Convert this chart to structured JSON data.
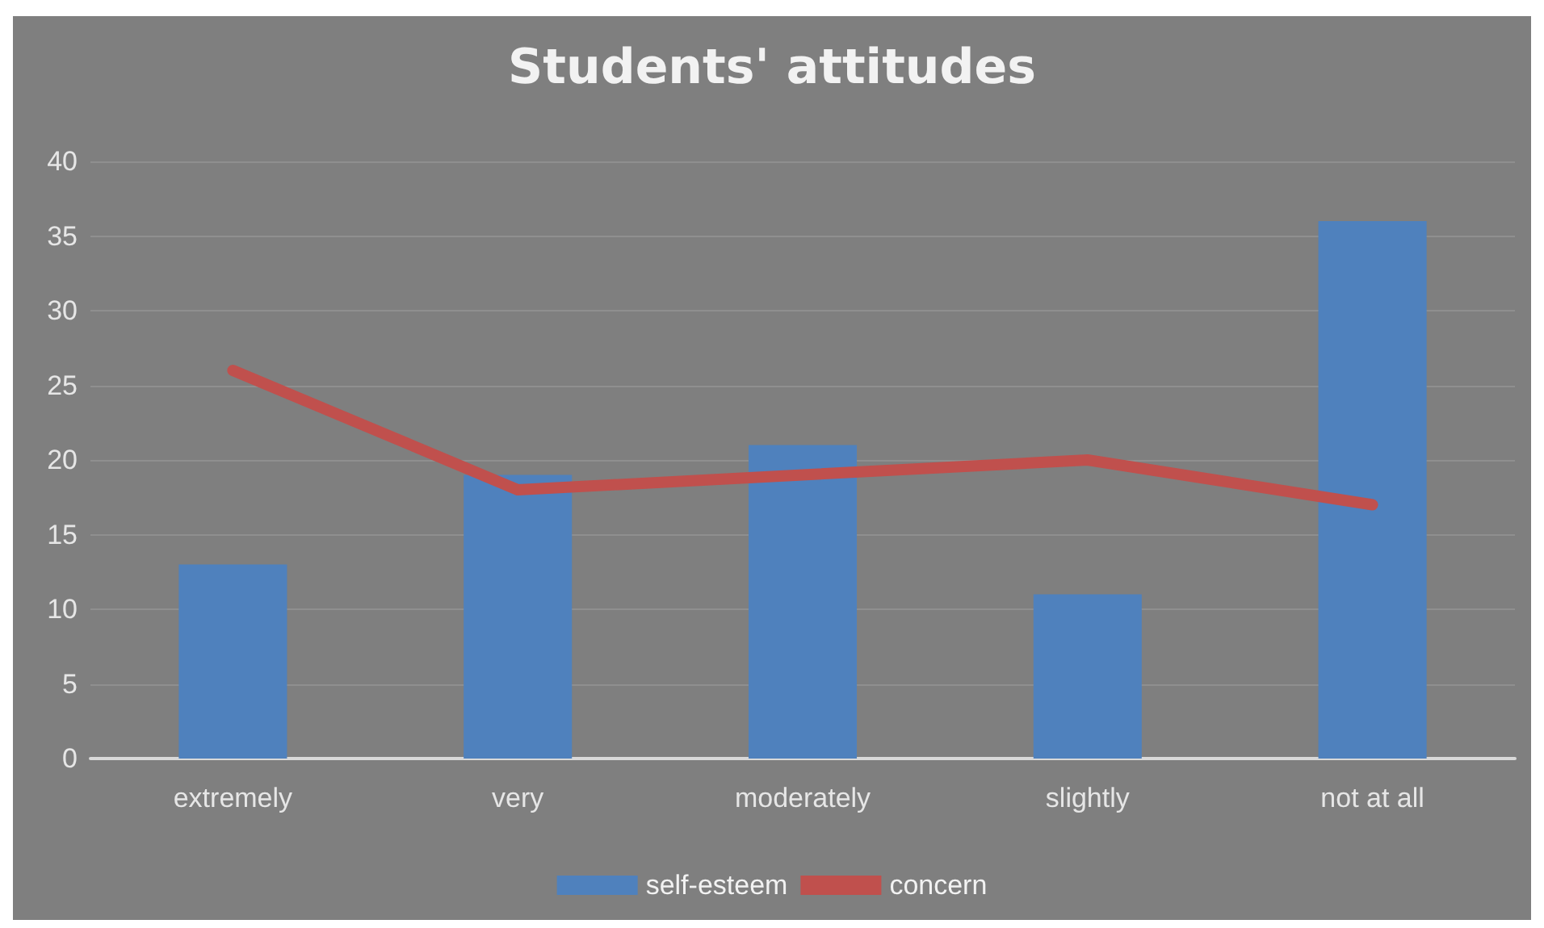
{
  "chart_data": {
    "type": "bar",
    "title": "Students' attitudes",
    "categories": [
      "extremely",
      "very",
      "moderately",
      "slightly",
      "not at all"
    ],
    "series": [
      {
        "name": "self-esteem",
        "color": "#4f81bd",
        "values": [
          13,
          19,
          21,
          11,
          36
        ]
      },
      {
        "name": "concern",
        "type": "line",
        "color": "#c0504d",
        "values": [
          26,
          18,
          19,
          20,
          17
        ]
      }
    ],
    "ylim": [
      0,
      40
    ],
    "yticks": [
      0,
      5,
      10,
      15,
      20,
      25,
      30,
      35,
      40
    ],
    "grid": "y",
    "legend": "bottom",
    "marker": "none"
  }
}
